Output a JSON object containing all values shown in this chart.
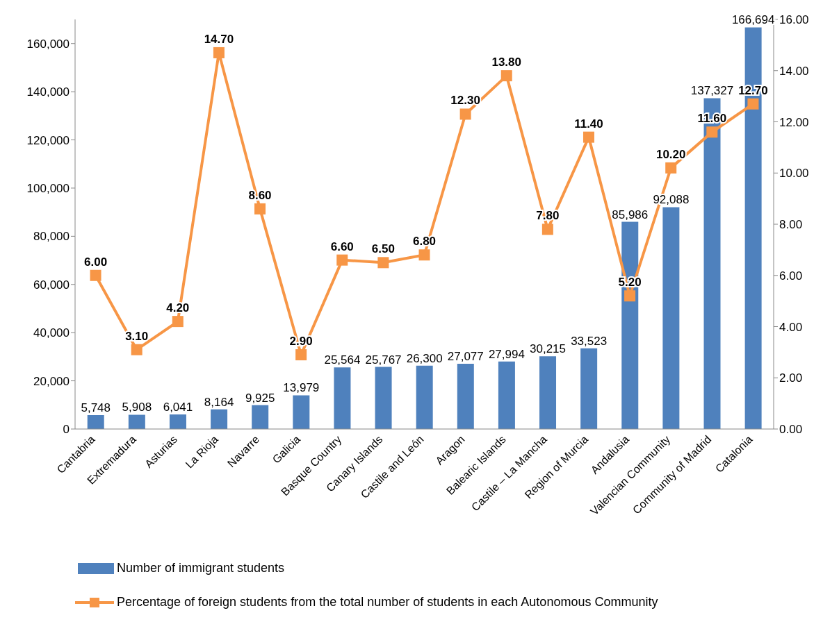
{
  "chart_data": {
    "type": "bar",
    "categories": [
      "Cantabria",
      "Extremadura",
      "Asturias",
      "La Rioja",
      "Navarre",
      "Galicia",
      "Basque Country",
      "Canary Islands",
      "Castile and León",
      "Aragon",
      "Balearic Islands",
      "Castile – La Mancha",
      "Region of Murcia",
      "Andalusia",
      "Valencian Community",
      "Community of Madrid",
      "Catalonia"
    ],
    "series": [
      {
        "name": "Number of immigrant students",
        "color": "#4f81bd",
        "values": [
          5748,
          5908,
          6041,
          8164,
          9925,
          13979,
          25564,
          25767,
          26300,
          27077,
          27994,
          30215,
          33523,
          85986,
          92088,
          137327,
          166694
        ],
        "value_labels": [
          "5,748",
          "5,908",
          "6,041",
          "8,164",
          "9,925",
          "13,979",
          "25,564",
          "25,767",
          "26,300",
          "27,077",
          "27,994",
          "30,215",
          "33,523",
          "85,986",
          "92,088",
          "137,327",
          "166,694"
        ]
      },
      {
        "name": "Percentage of foreign students from the total number of students in each Autonomous Community",
        "type": "line",
        "axis": "y2",
        "color": "#f79646",
        "values": [
          6.0,
          3.1,
          4.2,
          14.7,
          8.6,
          2.9,
          6.6,
          6.5,
          6.8,
          12.3,
          13.8,
          7.8,
          11.4,
          5.2,
          10.2,
          11.6,
          12.7
        ],
        "value_labels": [
          "6.00",
          "3.10",
          "4.20",
          "14.70",
          "8.60",
          "2.90",
          "6.60",
          "6.50",
          "6.80",
          "12.30",
          "13.80",
          "7.80",
          "11.40",
          "5.20",
          "10.20",
          "11.60",
          "12.70"
        ]
      }
    ],
    "ylim": [
      0,
      170000
    ],
    "yticks": [
      0,
      {
        "value": 20000,
        "label": "20,000"
      },
      {
        "value": 40000,
        "label": "40,000"
      },
      {
        "value": 60000,
        "label": "60,000"
      },
      {
        "value": 80000,
        "label": "80,000"
      },
      {
        "value": 100000,
        "label": "100,000"
      },
      {
        "value": 120000,
        "label": "120,000"
      },
      {
        "value": 140000,
        "label": "140,000"
      },
      {
        "value": 160000,
        "label": "160,000"
      }
    ],
    "y2lim": [
      0,
      16
    ],
    "y2ticks": [
      {
        "value": 0,
        "label": "0.00"
      },
      {
        "value": 2,
        "label": "2.00"
      },
      {
        "value": 4,
        "label": "4.00"
      },
      {
        "value": 6,
        "label": "6.00"
      },
      {
        "value": 8,
        "label": "8.00"
      },
      {
        "value": 10,
        "label": "10.00"
      },
      {
        "value": 12,
        "label": "12.00"
      },
      {
        "value": 14,
        "label": "14.00"
      },
      {
        "value": 16,
        "label": "16.00"
      }
    ],
    "marker": "square",
    "legend": "bottom"
  }
}
